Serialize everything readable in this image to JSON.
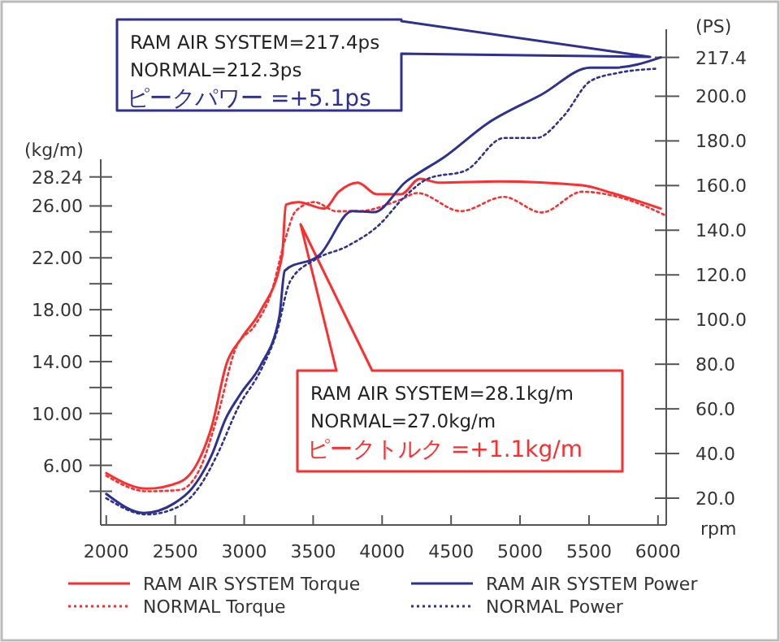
{
  "chart_data": {
    "type": "line",
    "xlabel": "rpm",
    "ylabel": "(kg/m)",
    "y2label": "(PS)",
    "xlim": [
      1960,
      6060
    ],
    "xticks": [
      2000,
      2500,
      3000,
      3500,
      4000,
      4500,
      5000,
      5500,
      6000
    ],
    "ylim": [
      1.4,
      29.6
    ],
    "yticks": [
      {
        "value": 4,
        "label": null
      },
      {
        "value": 6,
        "label": "6.00"
      },
      {
        "value": 8,
        "label": null
      },
      {
        "value": 10,
        "label": "10.00"
      },
      {
        "value": 12,
        "label": null
      },
      {
        "value": 14,
        "label": "14.00"
      },
      {
        "value": 16,
        "label": null
      },
      {
        "value": 18,
        "label": "18.00"
      },
      {
        "value": 20,
        "label": null
      },
      {
        "value": 22,
        "label": "22.00"
      },
      {
        "value": 24,
        "label": null
      },
      {
        "value": 26,
        "label": "26.00"
      },
      {
        "value": 28.24,
        "label": "28.24"
      }
    ],
    "y2lim": [
      8,
      230
    ],
    "y2ticks": [
      {
        "value": 20,
        "label": "20.0"
      },
      {
        "value": 40,
        "label": "40.0"
      },
      {
        "value": 60,
        "label": "60.0"
      },
      {
        "value": 80,
        "label": "80.0"
      },
      {
        "value": 100,
        "label": "100.0"
      },
      {
        "value": 120,
        "label": "120.0"
      },
      {
        "value": 140,
        "label": "140.0"
      },
      {
        "value": 160,
        "label": "160.0"
      },
      {
        "value": 180,
        "label": "180.0"
      },
      {
        "value": 200,
        "label": "200.0"
      },
      {
        "value": 217.4,
        "label": "217.4"
      }
    ],
    "legend": "bottom",
    "annotations": [
      "RAM AIR SYSTEM=217.4ps\nNORMAL=212.3ps\nピークパワー =+5.1ps",
      "RAM AIR SYSTEM=28.1kg/m\nNORMAL=27.0kg/m\nピークトルク =+1.1kg/m"
    ],
    "series": [
      {
        "name": "RAM AIR SYSTEM Torque",
        "color": "#ff2e2e",
        "line_style": "solid",
        "x": [
          2000,
          2294,
          2530,
          2667,
          2765,
          2874,
          2980,
          3118,
          3274,
          3302,
          3392,
          3580,
          3686,
          3824,
          3961,
          4137,
          4274,
          4412,
          4843,
          5451,
          5667,
          6020
        ],
        "values": [
          5.4,
          4.2,
          4.7,
          6.3,
          9.0,
          13.9,
          15.8,
          17.9,
          22.1,
          26.1,
          26.3,
          25.8,
          27.1,
          27.8,
          26.9,
          26.9,
          28.1,
          27.8,
          27.9,
          27.6,
          27.0,
          25.8
        ]
      },
      {
        "name": "NORMAL Torque",
        "color": "#ff2e2e",
        "line_style": "dotted",
        "x": [
          2000,
          2294,
          2530,
          2686,
          2804,
          2941,
          3078,
          3196,
          3294,
          3373,
          3510,
          3667,
          3824,
          4137,
          4255,
          4569,
          4882,
          5157,
          5451,
          5745,
          6050
        ],
        "values": [
          5.2,
          4.0,
          4.1,
          5.9,
          9.7,
          15.1,
          16.8,
          19.3,
          23.3,
          25.6,
          26.3,
          25.6,
          25.6,
          26.5,
          27.0,
          25.6,
          26.7,
          25.5,
          27.1,
          26.6,
          25.3
        ]
      },
      {
        "name": "RAM AIR SYSTEM Power",
        "color": "#2e3192",
        "line_style": "solid",
        "axis": "y2",
        "x": [
          2000,
          2274,
          2490,
          2627,
          2765,
          2863,
          2980,
          3118,
          3255,
          3294,
          3549,
          3784,
          3941,
          4176,
          4235,
          4451,
          4765,
          5157,
          5510,
          5686,
          6020
        ],
        "values": [
          21.9,
          13.4,
          17.6,
          24.8,
          39.4,
          55.2,
          67.3,
          79.4,
          101.3,
          121.9,
          129.1,
          148.6,
          148.1,
          161.9,
          164.4,
          172.8,
          187.9,
          200.8,
          212.8,
          212.8,
          217.4
        ]
      },
      {
        "name": "NORMAL Power",
        "color": "#2e3192",
        "line_style": "dotted",
        "axis": "y2",
        "x": [
          2000,
          2294,
          2530,
          2686,
          2804,
          2961,
          3118,
          3235,
          3333,
          3510,
          3745,
          3980,
          4157,
          4333,
          4608,
          4882,
          5118,
          5314,
          5510,
          5706,
          5980
        ],
        "values": [
          20.0,
          12.7,
          16.4,
          26.1,
          39.4,
          61.2,
          77.0,
          94.0,
          117.1,
          126.7,
          132.8,
          142.5,
          154.6,
          163.1,
          166.8,
          181.3,
          181.3,
          191.0,
          206.8,
          210.4,
          212.3
        ]
      }
    ]
  }
}
